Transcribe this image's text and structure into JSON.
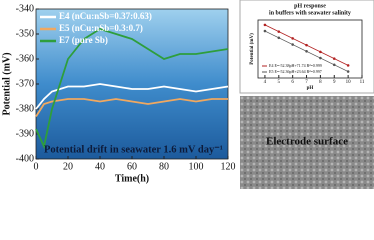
{
  "chart_data": [
    {
      "type": "line",
      "x_label": "Time(h)",
      "y_label": "Potential (mV)",
      "annotation": "Potential drift in seawater  1.6 mV day⁻¹",
      "x": [
        0,
        5,
        10,
        20,
        30,
        40,
        50,
        60,
        70,
        80,
        90,
        100,
        110,
        120
      ],
      "series": [
        {
          "name": "E4 (nCu:nSb=0.37:0.63)",
          "color": "#ffffff",
          "values": [
            -380,
            -376,
            -373,
            -371,
            -371,
            -370,
            -371,
            -372,
            -372,
            -371,
            -372,
            -373,
            -372,
            -371
          ]
        },
        {
          "name": "E5 (nCu:nSb=0.3:0.7)",
          "color": "#f0a860",
          "values": [
            -383,
            -378,
            -377,
            -376,
            -376,
            -377,
            -376,
            -377,
            -378,
            -377,
            -376,
            -377,
            -376,
            -376
          ]
        },
        {
          "name": "E7 (pure Sb)",
          "color": "#2e9e3c",
          "values": [
            -388,
            -395,
            -380,
            -360,
            -352,
            -348,
            -350,
            -352,
            -356,
            -360,
            -358,
            -358,
            -357,
            -356
          ]
        }
      ],
      "xlim": [
        0,
        120
      ],
      "xticks": [
        0,
        20,
        40,
        60,
        80,
        100,
        120
      ],
      "ylim": [
        -400,
        -340
      ],
      "yticks": [
        -400,
        -390,
        -380,
        -370,
        -360,
        -350,
        -340
      ]
    },
    {
      "type": "line",
      "title_lines": [
        "pH response",
        "in buffers with seawater salinity"
      ],
      "x_label": "pH",
      "y_label": "Potential (mV)",
      "x": [
        4,
        5,
        6,
        7,
        8,
        9,
        10
      ],
      "series": [
        {
          "name": "E4 E=-52.38pH+71.74 R²=0.999",
          "color": "#b22222",
          "values": [
            -137.8,
            -190.2,
            -242.5,
            -294.9,
            -347.3,
            -399.7,
            -452.1
          ]
        },
        {
          "name": "E5 E=-52.36pH+23.64 R²=0.997",
          "color": "#555555",
          "values": [
            -185.8,
            -238.2,
            -290.5,
            -342.9,
            -395.2,
            -447.6,
            -500.0
          ]
        }
      ],
      "xlim": [
        3.5,
        11
      ],
      "xticks": [
        4,
        5,
        6,
        7,
        8,
        9,
        10,
        11
      ],
      "ylim": [
        -550,
        -100
      ],
      "yticks": []
    }
  ],
  "image": {
    "caption": "Electrode surface"
  }
}
